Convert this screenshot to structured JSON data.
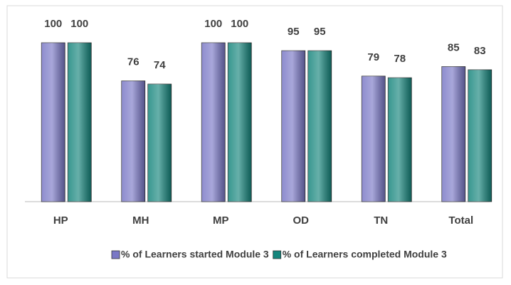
{
  "chart_data": {
    "type": "bar",
    "categories": [
      "HP",
      "MH",
      "MP",
      "OD",
      "TN",
      "Total"
    ],
    "series": [
      {
        "name": "% of Learners started Module 3",
        "color": "#7a78c6",
        "values": [
          100,
          76,
          100,
          95,
          79,
          85
        ]
      },
      {
        "name": "% of Learners completed Module 3",
        "color": "#15857c",
        "values": [
          100,
          74,
          100,
          95,
          78,
          83
        ]
      }
    ],
    "legend": "bottom"
  }
}
